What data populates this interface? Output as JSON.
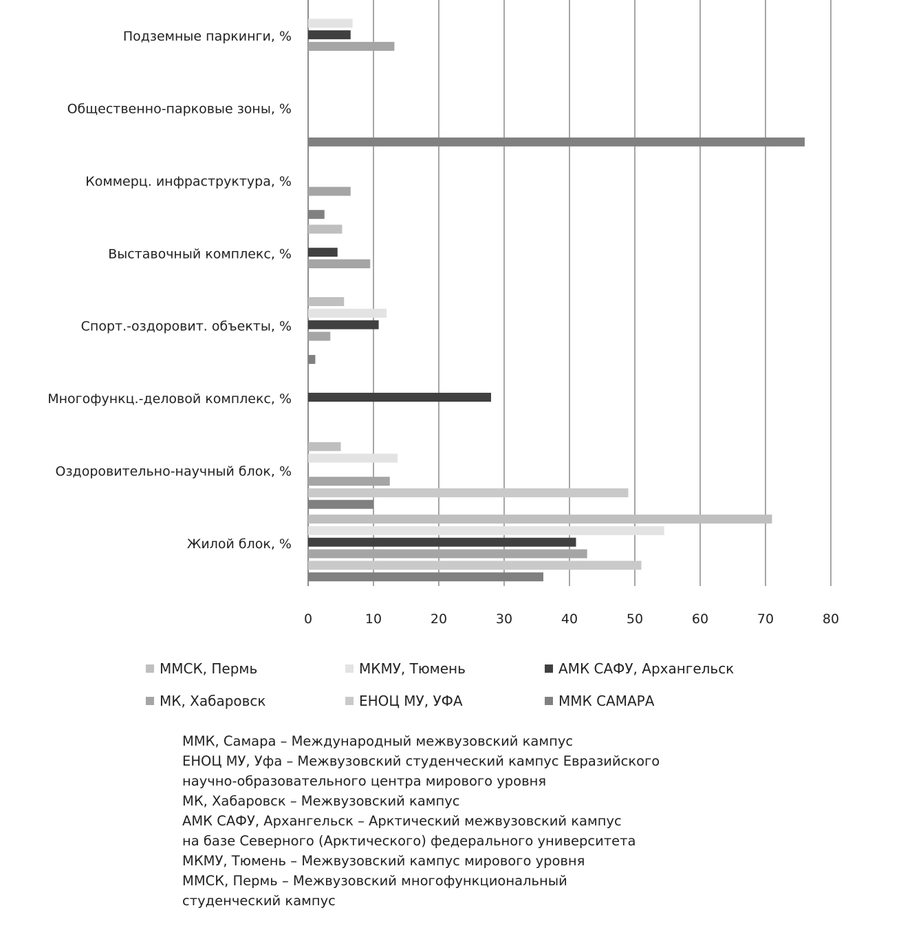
{
  "chart_data": {
    "type": "bar",
    "orientation": "horizontal",
    "title": "",
    "xlabel": "",
    "ylabel": "",
    "xlim": [
      0,
      80
    ],
    "xticks": [
      0,
      10,
      20,
      30,
      40,
      50,
      60,
      70,
      80
    ],
    "grid": true,
    "legend_position": "bottom",
    "categories": [
      "Подземные паркинги, %",
      "Общественно-парковые зоны, %",
      "Коммерц. инфраструктура, %",
      "Выставочный комплекс, %",
      "Спорт.-оздоровит. объекты, %",
      "Многофункц.-деловой комплекс, %",
      "Оздоровительно-научный блок, %",
      "Жилой блок, %"
    ],
    "series": [
      {
        "name": "ММСК, Пермь",
        "color": "#bfbfbf",
        "values": [
          0,
          0,
          0,
          5.2,
          5.5,
          0,
          5.0,
          71.0
        ]
      },
      {
        "name": "МКМУ, Тюмень",
        "color": "#e3e3e3",
        "values": [
          6.8,
          0,
          0,
          0,
          12.0,
          0,
          13.7,
          54.5
        ]
      },
      {
        "name": "АМК САФУ, Архангельск",
        "color": "#404040",
        "values": [
          6.5,
          0,
          0,
          4.5,
          10.8,
          28.0,
          0,
          41.0
        ]
      },
      {
        "name": "МК, Хабаровск",
        "color": "#a5a5a5",
        "values": [
          13.2,
          0,
          6.5,
          9.5,
          3.4,
          0,
          12.5,
          42.7
        ]
      },
      {
        "name": "ЕНОЦ МУ, УФА",
        "color": "#c9c9c9",
        "values": [
          0,
          0,
          0,
          0,
          0,
          0,
          49.0,
          51.0
        ]
      },
      {
        "name": "ММК САМАРА",
        "color": "#808080",
        "values": [
          0,
          76.0,
          2.5,
          0,
          1.1,
          0,
          10.0,
          36.0
        ]
      }
    ]
  },
  "notes": [
    "ММК, Самара – Международный межвузовский кампус",
    "ЕНОЦ МУ, Уфа – Межвузовский студенческий кампус Евразийского",
    "научно-образовательного центра мирового уровня",
    "МК, Хабаровск – Межвузовский кампус",
    "АМК САФУ, Архангельск – Арктический межвузовский кампус",
    "на базе Северного (Арктического) федерального университета",
    "МКМУ, Тюмень – Межвузовский кампус мирового уровня",
    "ММСК, Пермь – Межвузовский многофункциональный",
    "студенческий кампус"
  ]
}
